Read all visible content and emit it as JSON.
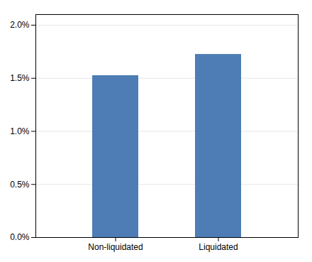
{
  "chart_data": {
    "type": "bar",
    "categories": [
      "Non-liquidated",
      "Liquidated"
    ],
    "values": [
      0.01525,
      0.01725
    ],
    "color": "#4E7DB5",
    "ylim": [
      0,
      0.021
    ],
    "yticks": [
      {
        "value": 0.0,
        "label": "0.0%"
      },
      {
        "value": 0.005,
        "label": "0.5%"
      },
      {
        "value": 0.01,
        "label": "1.0%"
      },
      {
        "value": 0.015,
        "label": "1.5%"
      },
      {
        "value": 0.02,
        "label": "2.0%"
      }
    ],
    "grid": true
  }
}
